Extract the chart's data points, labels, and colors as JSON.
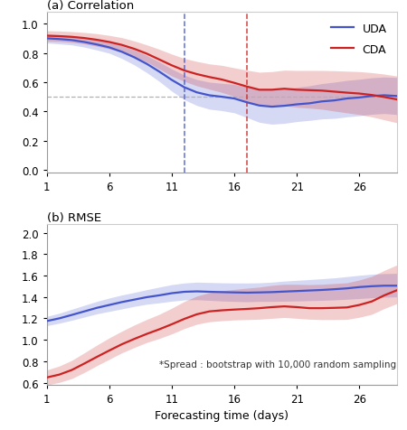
{
  "title_a": "(a) Correlation",
  "title_b": "(b) RMSE",
  "xlabel": "Forecasting time (days)",
  "x": [
    1,
    2,
    3,
    4,
    5,
    6,
    7,
    8,
    9,
    10,
    11,
    12,
    13,
    14,
    15,
    16,
    17,
    18,
    19,
    20,
    21,
    22,
    23,
    24,
    25,
    26,
    27,
    28,
    29
  ],
  "corr_uda": [
    0.9,
    0.895,
    0.888,
    0.875,
    0.858,
    0.838,
    0.808,
    0.77,
    0.725,
    0.672,
    0.615,
    0.565,
    0.53,
    0.51,
    0.5,
    0.488,
    0.462,
    0.44,
    0.432,
    0.438,
    0.448,
    0.455,
    0.468,
    0.475,
    0.488,
    0.495,
    0.505,
    0.51,
    0.505
  ],
  "corr_uda_upper": [
    0.928,
    0.924,
    0.918,
    0.908,
    0.893,
    0.876,
    0.85,
    0.82,
    0.782,
    0.738,
    0.69,
    0.648,
    0.618,
    0.6,
    0.592,
    0.585,
    0.568,
    0.552,
    0.548,
    0.555,
    0.565,
    0.575,
    0.59,
    0.6,
    0.612,
    0.62,
    0.63,
    0.635,
    0.632
  ],
  "corr_uda_lower": [
    0.868,
    0.862,
    0.855,
    0.84,
    0.82,
    0.798,
    0.762,
    0.718,
    0.665,
    0.605,
    0.538,
    0.48,
    0.44,
    0.415,
    0.405,
    0.39,
    0.358,
    0.325,
    0.312,
    0.318,
    0.33,
    0.338,
    0.348,
    0.352,
    0.362,
    0.37,
    0.38,
    0.385,
    0.378
  ],
  "corr_cda": [
    0.918,
    0.915,
    0.91,
    0.902,
    0.89,
    0.875,
    0.855,
    0.828,
    0.795,
    0.755,
    0.715,
    0.68,
    0.655,
    0.635,
    0.618,
    0.595,
    0.57,
    0.548,
    0.548,
    0.555,
    0.548,
    0.545,
    0.542,
    0.535,
    0.528,
    0.522,
    0.512,
    0.498,
    0.482
  ],
  "corr_cda_upper": [
    0.952,
    0.95,
    0.946,
    0.94,
    0.932,
    0.92,
    0.905,
    0.882,
    0.855,
    0.825,
    0.792,
    0.762,
    0.742,
    0.725,
    0.715,
    0.698,
    0.682,
    0.668,
    0.672,
    0.682,
    0.68,
    0.68,
    0.68,
    0.678,
    0.675,
    0.672,
    0.665,
    0.655,
    0.642
  ],
  "corr_cda_lower": [
    0.88,
    0.878,
    0.872,
    0.862,
    0.846,
    0.828,
    0.805,
    0.775,
    0.738,
    0.69,
    0.642,
    0.605,
    0.575,
    0.552,
    0.53,
    0.502,
    0.468,
    0.44,
    0.435,
    0.438,
    0.428,
    0.422,
    0.415,
    0.402,
    0.39,
    0.378,
    0.362,
    0.342,
    0.322
  ],
  "rmse_uda": [
    1.175,
    1.2,
    1.232,
    1.265,
    1.298,
    1.325,
    1.352,
    1.375,
    1.398,
    1.415,
    1.435,
    1.448,
    1.452,
    1.448,
    1.445,
    1.442,
    1.44,
    1.442,
    1.445,
    1.45,
    1.455,
    1.46,
    1.465,
    1.472,
    1.48,
    1.492,
    1.5,
    1.505,
    1.505
  ],
  "rmse_uda_upper": [
    1.218,
    1.248,
    1.285,
    1.322,
    1.358,
    1.39,
    1.418,
    1.442,
    1.468,
    1.492,
    1.515,
    1.53,
    1.538,
    1.535,
    1.532,
    1.53,
    1.53,
    1.532,
    1.538,
    1.548,
    1.555,
    1.562,
    1.57,
    1.578,
    1.59,
    1.602,
    1.612,
    1.618,
    1.62
  ],
  "rmse_uda_lower": [
    1.132,
    1.155,
    1.182,
    1.212,
    1.242,
    1.265,
    1.288,
    1.312,
    1.332,
    1.345,
    1.36,
    1.372,
    1.374,
    1.368,
    1.362,
    1.358,
    1.355,
    1.358,
    1.358,
    1.36,
    1.362,
    1.365,
    1.368,
    1.372,
    1.378,
    1.385,
    1.392,
    1.398,
    1.4
  ],
  "rmse_cda": [
    0.648,
    0.675,
    0.718,
    0.778,
    0.84,
    0.9,
    0.958,
    1.008,
    1.055,
    1.098,
    1.145,
    1.195,
    1.238,
    1.265,
    1.275,
    1.282,
    1.288,
    1.295,
    1.305,
    1.312,
    1.305,
    1.295,
    1.295,
    1.298,
    1.302,
    1.325,
    1.358,
    1.415,
    1.462
  ],
  "rmse_cda_upper": [
    0.718,
    0.755,
    0.808,
    0.878,
    0.95,
    1.018,
    1.08,
    1.138,
    1.19,
    1.238,
    1.295,
    1.358,
    1.408,
    1.44,
    1.458,
    1.47,
    1.482,
    1.492,
    1.508,
    1.518,
    1.518,
    1.515,
    1.518,
    1.525,
    1.532,
    1.558,
    1.592,
    1.648,
    1.698
  ],
  "rmse_cda_lower": [
    0.578,
    0.602,
    0.638,
    0.695,
    0.758,
    0.818,
    0.878,
    0.928,
    0.975,
    1.012,
    1.055,
    1.105,
    1.145,
    1.168,
    1.178,
    1.185,
    1.188,
    1.192,
    1.2,
    1.208,
    1.2,
    1.192,
    1.188,
    1.188,
    1.19,
    1.21,
    1.238,
    1.292,
    1.338
  ],
  "color_uda": "#4455cc",
  "color_cda": "#cc2222",
  "fill_alpha": 0.22,
  "dashed_x_uda": 12,
  "dashed_x_cda": 17,
  "hline_y": 0.5,
  "hline_color": "#b0b0b0",
  "xticks": [
    1,
    6,
    11,
    16,
    21,
    26
  ],
  "yticks_a": [
    0.0,
    0.2,
    0.4,
    0.6,
    0.8,
    1.0
  ],
  "yticks_b": [
    0.6,
    0.8,
    1.0,
    1.2,
    1.4,
    1.6,
    1.8,
    2.0
  ],
  "ylim_a": [
    -0.02,
    1.08
  ],
  "ylim_b": [
    0.58,
    2.08
  ],
  "annotation_b": "*Spread : bootstrap with 10,000 random sampling",
  "bg_color": "#ffffff"
}
